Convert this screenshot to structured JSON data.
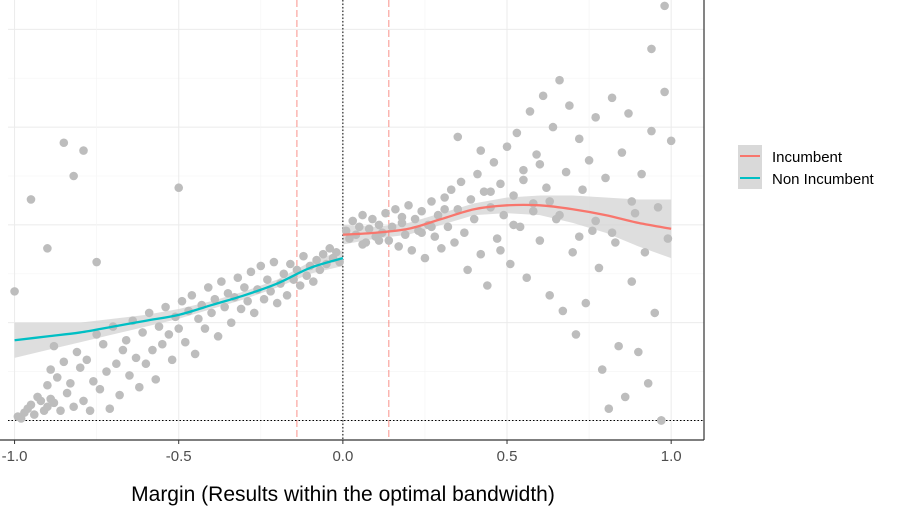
{
  "chart_data": {
    "type": "scatter",
    "title": "",
    "xlabel": "Margin (Results within the optimal bandwidth)",
    "ylabel": "",
    "xlim": [
      -1.02,
      1.1
    ],
    "ylim": [
      -0.1,
      2.15
    ],
    "x_ticks": [
      -1.0,
      -0.5,
      0.0,
      0.5,
      1.0
    ],
    "x_tick_labels": [
      "-1.0",
      "-0.5",
      "0.0",
      "0.5",
      "1.0"
    ],
    "grid": true,
    "legend_position": "right",
    "reference_lines": {
      "cutoff_x": 0.0,
      "bandwidth_x": [
        -0.14,
        0.14
      ],
      "baseline_y": 0.0
    },
    "series": [
      {
        "name": "Incumbent",
        "color": "#F8766D",
        "x": [
          0.0,
          0.1,
          0.2,
          0.3,
          0.4,
          0.5,
          0.6,
          0.7,
          0.8,
          0.9,
          1.0
        ],
        "y": [
          0.95,
          0.96,
          0.98,
          1.03,
          1.08,
          1.1,
          1.1,
          1.08,
          1.05,
          1.01,
          0.98
        ],
        "ci_low": [
          0.9,
          0.93,
          0.95,
          1.0,
          1.05,
          1.06,
          1.05,
          1.01,
          0.96,
          0.89,
          0.83
        ],
        "ci_high": [
          1.0,
          0.99,
          1.01,
          1.06,
          1.11,
          1.14,
          1.15,
          1.15,
          1.14,
          1.13,
          1.13
        ]
      },
      {
        "name": "Non Incumbent",
        "color": "#00BFC4",
        "x": [
          -1.0,
          -0.9,
          -0.8,
          -0.7,
          -0.6,
          -0.5,
          -0.4,
          -0.3,
          -0.2,
          -0.1,
          0.0
        ],
        "y": [
          0.41,
          0.43,
          0.45,
          0.48,
          0.51,
          0.54,
          0.59,
          0.64,
          0.7,
          0.78,
          0.83
        ],
        "ci_low": [
          0.32,
          0.36,
          0.4,
          0.44,
          0.48,
          0.52,
          0.57,
          0.62,
          0.68,
          0.75,
          0.79
        ],
        "ci_high": [
          0.5,
          0.5,
          0.5,
          0.52,
          0.54,
          0.57,
          0.61,
          0.66,
          0.72,
          0.81,
          0.87
        ]
      }
    ],
    "points_color": "#bdbdbd",
    "points": [
      [
        -1.0,
        0.66
      ],
      [
        -0.99,
        0.02
      ],
      [
        -0.98,
        0.01
      ],
      [
        -0.97,
        0.04
      ],
      [
        -0.96,
        0.06
      ],
      [
        -0.95,
        0.08
      ],
      [
        -0.94,
        0.03
      ],
      [
        -0.93,
        0.12
      ],
      [
        -0.92,
        0.1
      ],
      [
        -0.91,
        0.05
      ],
      [
        -0.9,
        0.18
      ],
      [
        -0.9,
        0.07
      ],
      [
        -0.89,
        0.26
      ],
      [
        -0.89,
        0.11
      ],
      [
        -0.88,
        0.38
      ],
      [
        -0.88,
        0.09
      ],
      [
        -0.87,
        0.22
      ],
      [
        -0.86,
        0.05
      ],
      [
        -0.85,
        0.3
      ],
      [
        -0.84,
        0.14
      ],
      [
        -0.83,
        0.19
      ],
      [
        -0.82,
        0.07
      ],
      [
        -0.81,
        0.35
      ],
      [
        -0.8,
        0.27
      ],
      [
        -0.79,
        0.1
      ],
      [
        -0.78,
        0.31
      ],
      [
        -0.77,
        0.05
      ],
      [
        -0.76,
        0.2
      ],
      [
        -0.75,
        0.44
      ],
      [
        -0.74,
        0.16
      ],
      [
        -0.73,
        0.39
      ],
      [
        -0.72,
        0.25
      ],
      [
        -0.71,
        0.06
      ],
      [
        -0.7,
        0.48
      ],
      [
        -0.69,
        0.29
      ],
      [
        -0.68,
        0.13
      ],
      [
        -0.67,
        0.36
      ],
      [
        -0.66,
        0.41
      ],
      [
        -0.65,
        0.23
      ],
      [
        -0.64,
        0.51
      ],
      [
        -0.63,
        0.32
      ],
      [
        -0.62,
        0.17
      ],
      [
        -0.61,
        0.45
      ],
      [
        -0.6,
        0.29
      ],
      [
        -0.59,
        0.55
      ],
      [
        -0.58,
        0.36
      ],
      [
        -0.57,
        0.21
      ],
      [
        -0.56,
        0.48
      ],
      [
        -0.55,
        0.39
      ],
      [
        -0.54,
        0.58
      ],
      [
        -0.53,
        0.44
      ],
      [
        -0.52,
        0.31
      ],
      [
        -0.51,
        0.53
      ],
      [
        -0.5,
        0.47
      ],
      [
        -0.49,
        0.61
      ],
      [
        -0.48,
        0.4
      ],
      [
        -0.47,
        0.56
      ],
      [
        -0.46,
        0.64
      ],
      [
        -0.45,
        0.34
      ],
      [
        -0.44,
        0.52
      ],
      [
        -0.43,
        0.59
      ],
      [
        -0.42,
        0.47
      ],
      [
        -0.41,
        0.68
      ],
      [
        -0.4,
        0.55
      ],
      [
        -0.39,
        0.62
      ],
      [
        -0.38,
        0.43
      ],
      [
        -0.37,
        0.71
      ],
      [
        -0.36,
        0.58
      ],
      [
        -0.35,
        0.65
      ],
      [
        -0.34,
        0.5
      ],
      [
        -0.33,
        0.63
      ],
      [
        -0.32,
        0.73
      ],
      [
        -0.31,
        0.57
      ],
      [
        -0.3,
        0.68
      ],
      [
        -0.29,
        0.61
      ],
      [
        -0.28,
        0.76
      ],
      [
        -0.27,
        0.55
      ],
      [
        -0.26,
        0.67
      ],
      [
        -0.25,
        0.79
      ],
      [
        -0.24,
        0.62
      ],
      [
        -0.23,
        0.72
      ],
      [
        -0.22,
        0.66
      ],
      [
        -0.21,
        0.81
      ],
      [
        -0.2,
        0.6
      ],
      [
        -0.19,
        0.7
      ],
      [
        -0.18,
        0.75
      ],
      [
        -0.17,
        0.64
      ],
      [
        -0.16,
        0.8
      ],
      [
        -0.15,
        0.72
      ],
      [
        -0.14,
        0.77
      ],
      [
        -0.13,
        0.69
      ],
      [
        -0.12,
        0.84
      ],
      [
        -0.11,
        0.74
      ],
      [
        -0.1,
        0.79
      ],
      [
        -0.09,
        0.71
      ],
      [
        -0.08,
        0.82
      ],
      [
        -0.07,
        0.77
      ],
      [
        -0.06,
        0.85
      ],
      [
        -0.05,
        0.8
      ],
      [
        -0.04,
        0.88
      ],
      [
        -0.03,
        0.83
      ],
      [
        -0.02,
        0.86
      ],
      [
        -0.01,
        0.81
      ],
      [
        -0.95,
        1.13
      ],
      [
        -0.85,
        1.42
      ],
      [
        -0.82,
        1.25
      ],
      [
        -0.79,
        1.38
      ],
      [
        -0.75,
        0.81
      ],
      [
        -0.5,
        1.19
      ],
      [
        -0.9,
        0.88
      ],
      [
        0.01,
        0.97
      ],
      [
        0.02,
        0.93
      ],
      [
        0.03,
        1.02
      ],
      [
        0.04,
        0.95
      ],
      [
        0.05,
        0.99
      ],
      [
        0.06,
        1.05
      ],
      [
        0.07,
        0.91
      ],
      [
        0.08,
        0.98
      ],
      [
        0.09,
        1.03
      ],
      [
        0.1,
        0.94
      ],
      [
        0.11,
        1.0
      ],
      [
        0.12,
        0.96
      ],
      [
        0.13,
        1.06
      ],
      [
        0.14,
        0.92
      ],
      [
        0.15,
        0.99
      ],
      [
        0.16,
        1.08
      ],
      [
        0.17,
        0.89
      ],
      [
        0.18,
        1.01
      ],
      [
        0.19,
        0.95
      ],
      [
        0.2,
        1.1
      ],
      [
        0.21,
        0.87
      ],
      [
        0.22,
        1.03
      ],
      [
        0.23,
        0.97
      ],
      [
        0.24,
        1.07
      ],
      [
        0.25,
        0.83
      ],
      [
        0.26,
        1.0
      ],
      [
        0.27,
        1.12
      ],
      [
        0.28,
        0.94
      ],
      [
        0.29,
        1.05
      ],
      [
        0.3,
        0.88
      ],
      [
        0.31,
        1.14
      ],
      [
        0.32,
        0.99
      ],
      [
        0.33,
        1.18
      ],
      [
        0.34,
        0.91
      ],
      [
        0.35,
        1.08
      ],
      [
        0.36,
        1.22
      ],
      [
        0.37,
        0.96
      ],
      [
        0.38,
        0.77
      ],
      [
        0.39,
        1.13
      ],
      [
        0.4,
        1.03
      ],
      [
        0.41,
        1.26
      ],
      [
        0.42,
        0.85
      ],
      [
        0.43,
        1.17
      ],
      [
        0.44,
        0.69
      ],
      [
        0.45,
        1.09
      ],
      [
        0.46,
        1.32
      ],
      [
        0.47,
        0.93
      ],
      [
        0.48,
        1.21
      ],
      [
        0.49,
        1.05
      ],
      [
        0.5,
        1.4
      ],
      [
        0.51,
        0.8
      ],
      [
        0.52,
        1.15
      ],
      [
        0.53,
        1.47
      ],
      [
        0.54,
        0.99
      ],
      [
        0.55,
        1.28
      ],
      [
        0.56,
        0.73
      ],
      [
        0.57,
        1.58
      ],
      [
        0.58,
        1.11
      ],
      [
        0.59,
        1.36
      ],
      [
        0.6,
        0.92
      ],
      [
        0.61,
        1.66
      ],
      [
        0.62,
        1.19
      ],
      [
        0.63,
        0.64
      ],
      [
        0.64,
        1.5
      ],
      [
        0.65,
        1.03
      ],
      [
        0.66,
        1.74
      ],
      [
        0.67,
        0.56
      ],
      [
        0.68,
        1.27
      ],
      [
        0.69,
        1.61
      ],
      [
        0.7,
        0.86
      ],
      [
        0.71,
        0.44
      ],
      [
        0.72,
        1.44
      ],
      [
        0.73,
        1.18
      ],
      [
        0.74,
        0.6
      ],
      [
        0.75,
        1.33
      ],
      [
        0.76,
        0.97
      ],
      [
        0.77,
        1.55
      ],
      [
        0.78,
        0.78
      ],
      [
        0.79,
        0.26
      ],
      [
        0.8,
        1.24
      ],
      [
        0.81,
        0.06
      ],
      [
        0.82,
        1.65
      ],
      [
        0.83,
        0.91
      ],
      [
        0.84,
        0.38
      ],
      [
        0.85,
        1.37
      ],
      [
        0.86,
        0.12
      ],
      [
        0.87,
        1.57
      ],
      [
        0.88,
        0.71
      ],
      [
        0.89,
        1.06
      ],
      [
        0.9,
        0.35
      ],
      [
        0.91,
        1.26
      ],
      [
        0.92,
        0.86
      ],
      [
        0.93,
        0.19
      ],
      [
        0.94,
        1.48
      ],
      [
        0.95,
        0.55
      ],
      [
        0.96,
        1.09
      ],
      [
        0.97,
        0.0
      ],
      [
        0.98,
        1.68
      ],
      [
        0.99,
        0.93
      ],
      [
        1.0,
        1.43
      ],
      [
        0.35,
        1.45
      ],
      [
        0.42,
        1.38
      ],
      [
        0.55,
        1.23
      ],
      [
        0.6,
        1.31
      ],
      [
        0.18,
        1.04
      ],
      [
        0.27,
        0.99
      ],
      [
        0.45,
        1.17
      ],
      [
        0.66,
        1.05
      ],
      [
        0.72,
        0.94
      ],
      [
        0.88,
        1.12
      ],
      [
        0.06,
        0.9
      ],
      [
        0.11,
        0.92
      ],
      [
        0.24,
        0.96
      ],
      [
        0.31,
        1.08
      ],
      [
        0.48,
        0.87
      ],
      [
        0.52,
        1.0
      ],
      [
        0.58,
        1.07
      ],
      [
        0.63,
        1.12
      ],
      [
        0.77,
        1.02
      ],
      [
        0.82,
        0.96
      ],
      [
        0.98,
        2.12
      ],
      [
        0.94,
        1.9
      ],
      [
        0.97,
        0.0
      ]
    ]
  },
  "legend": {
    "items": [
      {
        "label": "Incumbent",
        "color": "#F8766D"
      },
      {
        "label": "Non Incumbent",
        "color": "#00BFC4"
      }
    ]
  }
}
